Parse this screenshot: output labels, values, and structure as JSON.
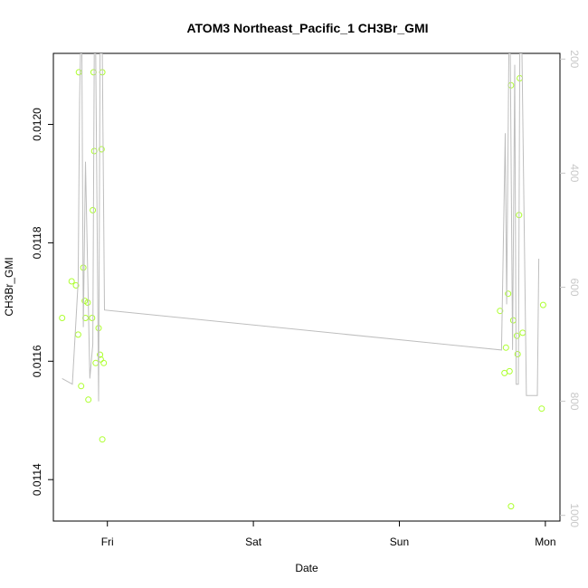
{
  "chart_data": {
    "type": "scatter",
    "title": "ATOM3 Northeast_Pacific_1 CH3Br_GMI",
    "xlabel": "Date",
    "ylabel": "CH3Br_GMI",
    "xlim": [
      -0.37,
      3.1
    ],
    "ylim": [
      0.01133,
      0.01212
    ],
    "x_ticks": [
      {
        "value": 0,
        "label": "Fri"
      },
      {
        "value": 1,
        "label": "Sat"
      },
      {
        "value": 2,
        "label": "Sun"
      },
      {
        "value": 3,
        "label": "Mon"
      }
    ],
    "y_ticks": [
      {
        "value": 0.0114,
        "label": "0.0114"
      },
      {
        "value": 0.0116,
        "label": "0.0116"
      },
      {
        "value": 0.0118,
        "label": "0.0118"
      },
      {
        "value": 0.012,
        "label": "0.0120"
      }
    ],
    "y2lim": [
      1010,
      190
    ],
    "y2_ticks": [
      {
        "value": 200,
        "label": "200"
      },
      {
        "value": 400,
        "label": "400"
      },
      {
        "value": 600,
        "label": "600"
      },
      {
        "value": 800,
        "label": "800"
      },
      {
        "value": 1000,
        "label": "1000"
      }
    ],
    "grid": false,
    "series": [
      {
        "kind": "points",
        "color": "#adff2f",
        "points": [
          [
            -0.31,
            0.011673
          ],
          [
            -0.245,
            0.011735
          ],
          [
            -0.215,
            0.011728
          ],
          [
            -0.2,
            0.011645
          ],
          [
            -0.195,
            0.012088
          ],
          [
            -0.18,
            0.011558
          ],
          [
            -0.165,
            0.011758
          ],
          [
            -0.155,
            0.011702
          ],
          [
            -0.15,
            0.011673
          ],
          [
            -0.135,
            0.011699
          ],
          [
            -0.13,
            0.011535
          ],
          [
            -0.105,
            0.011673
          ],
          [
            -0.1,
            0.011855
          ],
          [
            -0.095,
            0.012088
          ],
          [
            -0.09,
            0.011955
          ],
          [
            -0.08,
            0.011597
          ],
          [
            -0.06,
            0.011656
          ],
          [
            -0.05,
            0.011611
          ],
          [
            -0.045,
            0.011603
          ],
          [
            -0.04,
            0.011958
          ],
          [
            -0.035,
            0.012088
          ],
          [
            -0.035,
            0.011468
          ],
          [
            -0.025,
            0.011597
          ],
          [
            2.69,
            0.011685
          ],
          [
            2.72,
            0.01158
          ],
          [
            2.73,
            0.011623
          ],
          [
            2.745,
            0.011714
          ],
          [
            2.755,
            0.011583
          ],
          [
            2.765,
            0.012066
          ],
          [
            2.765,
            0.011355
          ],
          [
            2.78,
            0.011669
          ],
          [
            2.805,
            0.011643
          ],
          [
            2.81,
            0.011612
          ],
          [
            2.82,
            0.011847
          ],
          [
            2.825,
            0.012078
          ],
          [
            2.845,
            0.011648
          ],
          [
            2.975,
            0.01152
          ],
          [
            2.985,
            0.011695
          ]
        ]
      },
      {
        "kind": "line",
        "axis": "right",
        "color": "#bebebe",
        "points": [
          [
            -0.31,
            760
          ],
          [
            -0.24,
            770
          ],
          [
            -0.2,
            590
          ],
          [
            -0.19,
            270
          ],
          [
            -0.185,
            190
          ],
          [
            -0.175,
            190
          ],
          [
            -0.165,
            670
          ],
          [
            -0.15,
            380
          ],
          [
            -0.12,
            760
          ],
          [
            -0.1,
            700
          ],
          [
            -0.09,
            190
          ],
          [
            -0.08,
            190
          ],
          [
            -0.06,
            800
          ],
          [
            -0.05,
            190
          ],
          [
            -0.035,
            190
          ],
          [
            -0.02,
            640
          ],
          [
            2.7,
            710
          ],
          [
            2.725,
            330
          ],
          [
            2.735,
            630
          ],
          [
            2.75,
            190
          ],
          [
            2.76,
            190
          ],
          [
            2.775,
            710
          ],
          [
            2.79,
            210
          ],
          [
            2.8,
            770
          ],
          [
            2.815,
            770
          ],
          [
            2.825,
            190
          ],
          [
            2.84,
            190
          ],
          [
            2.87,
            790
          ],
          [
            2.93,
            790
          ],
          [
            2.945,
            790
          ],
          [
            2.955,
            550
          ]
        ]
      }
    ]
  }
}
